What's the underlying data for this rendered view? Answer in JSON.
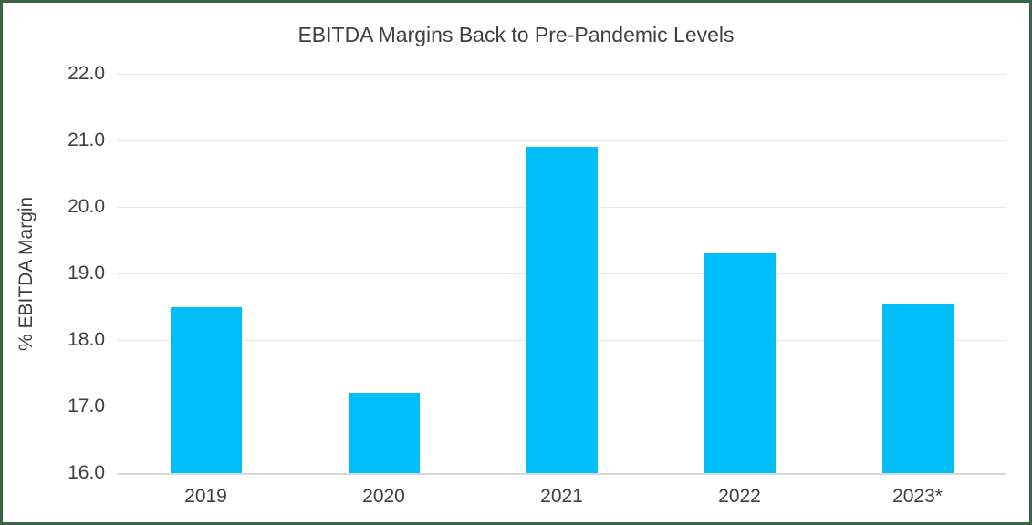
{
  "chart_data": {
    "type": "bar",
    "title": "EBITDA Margins Back to Pre-Pandemic Levels",
    "xlabel": "",
    "ylabel": "% EBITDA Margin",
    "categories": [
      "2019",
      "2020",
      "2021",
      "2022",
      "2023*"
    ],
    "values": [
      18.5,
      17.2,
      20.9,
      19.3,
      18.55
    ],
    "ylim": [
      16.0,
      22.0
    ],
    "y_ticks": [
      16.0,
      17.0,
      18.0,
      19.0,
      20.0,
      21.0,
      22.0
    ],
    "y_tick_labels": [
      "16.0",
      "17.0",
      "18.0",
      "19.0",
      "20.0",
      "21.0",
      "22.0"
    ],
    "grid": true,
    "legend": "none"
  },
  "colors": {
    "bar": "#00BEF8",
    "frame_border": "#3A6347",
    "gridline": "#E7E7E7",
    "axis_line": "#D8D8D8",
    "text": "#3E4043"
  }
}
